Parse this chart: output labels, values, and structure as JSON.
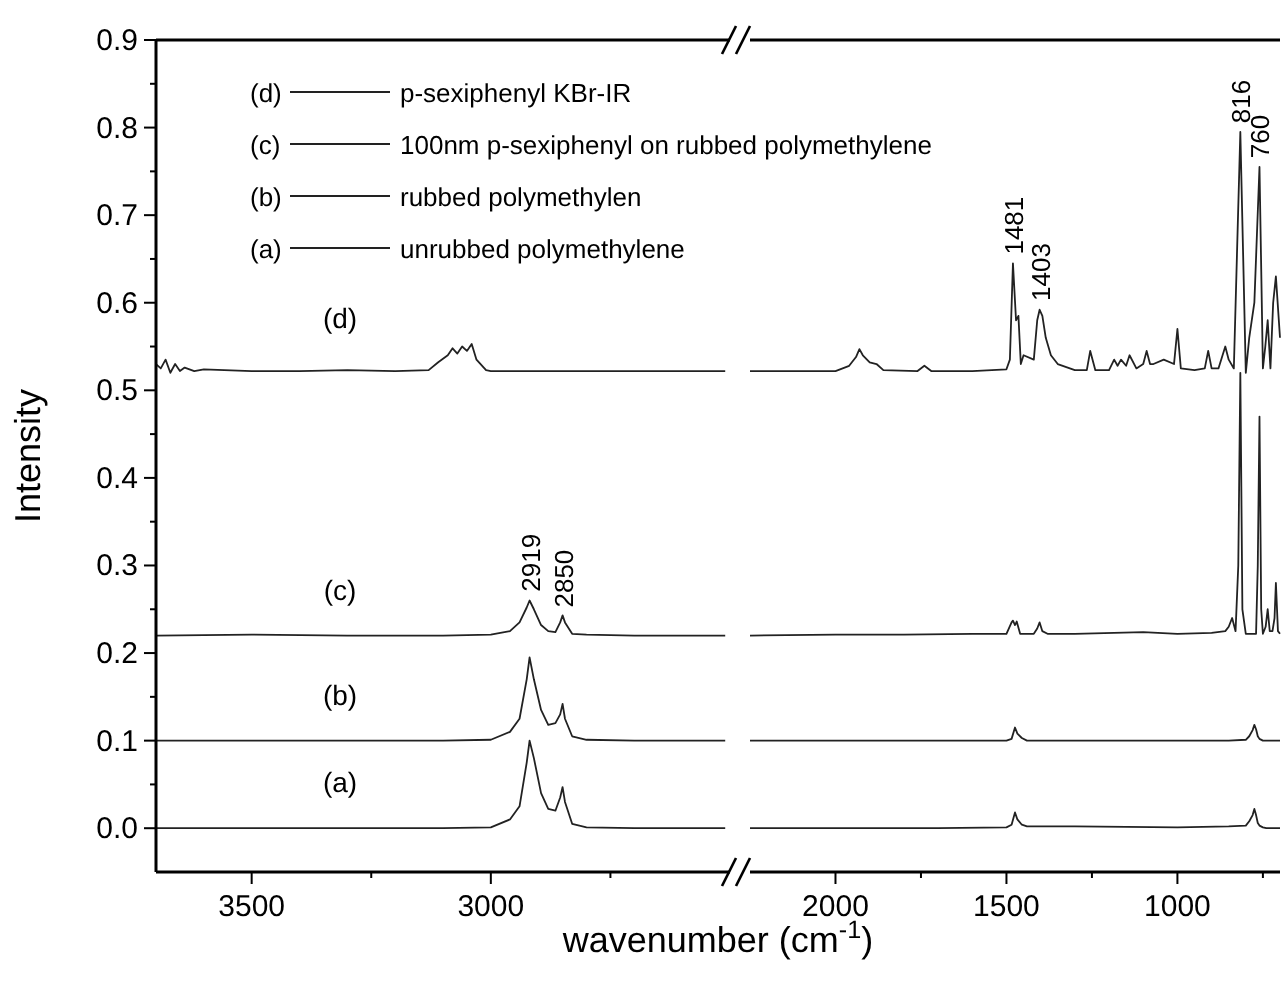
{
  "chart_data": [
    {
      "type": "line",
      "ylabel": "Intensity",
      "xlabel": "wavenumber (cm$^{-1}$)",
      "xlim": [
        3700,
        2500
      ],
      "ylim": [
        -0.05,
        0.9
      ],
      "xticks": [
        3500,
        {
          "value": 3250,
          "label": null
        },
        3000,
        {
          "value": 2750,
          "label": null
        }
      ],
      "yticks": [
        {
          "value": 0,
          "label": "0.0"
        },
        {
          "value": 0.05,
          "label": null
        },
        {
          "value": 0.1,
          "label": "0.1"
        },
        {
          "value": 0.15,
          "label": null
        },
        {
          "value": 0.2,
          "label": "0.2"
        },
        {
          "value": 0.25,
          "label": null
        },
        {
          "value": 0.3,
          "label": "0.3"
        },
        {
          "value": 0.35,
          "label": null
        },
        {
          "value": 0.4,
          "label": "0.4"
        },
        {
          "value": 0.45,
          "label": null
        },
        {
          "value": 0.5,
          "label": "0.5"
        },
        {
          "value": 0.55,
          "label": null
        },
        {
          "value": 0.6,
          "label": "0.6"
        },
        {
          "value": 0.65,
          "label": null
        },
        {
          "value": 0.7,
          "label": "0.7"
        },
        {
          "value": 0.75,
          "label": null
        },
        {
          "value": 0.8,
          "label": "0.8"
        },
        {
          "value": 0.85,
          "label": null
        },
        {
          "value": 0.9,
          "label": "0.9"
        }
      ],
      "legend": "top",
      "grid": false,
      "marker": "none",
      "line_style": "solid",
      "series": [
        {
          "name": "p-sexiphenyl KBr-IR",
          "color": "#222222",
          "x": [
            3700,
            3690,
            3680,
            3670,
            3660,
            3650,
            3640,
            3620,
            3600,
            3500,
            3400,
            3300,
            3200,
            3130,
            3110,
            3090,
            3080,
            3070,
            3060,
            3050,
            3040,
            3030,
            3010,
            3000,
            2900,
            2800,
            2700,
            2600,
            2510
          ],
          "values": [
            0.53,
            0.525,
            0.535,
            0.52,
            0.53,
            0.522,
            0.526,
            0.522,
            0.524,
            0.522,
            0.522,
            0.523,
            0.522,
            0.523,
            0.532,
            0.54,
            0.548,
            0.542,
            0.55,
            0.545,
            0.553,
            0.535,
            0.523,
            0.522,
            0.522,
            0.522,
            0.522,
            0.522,
            0.522
          ]
        },
        {
          "name": "100nm p-sexiphenyl on rubbed polymethylene",
          "color": "#222222",
          "x": [
            3700,
            3500,
            3300,
            3100,
            3000,
            2960,
            2940,
            2925,
            2919,
            2910,
            2895,
            2880,
            2865,
            2855,
            2850,
            2845,
            2830,
            2800,
            2700,
            2600,
            2510
          ],
          "values": [
            0.22,
            0.221,
            0.22,
            0.22,
            0.221,
            0.225,
            0.235,
            0.252,
            0.26,
            0.25,
            0.232,
            0.225,
            0.224,
            0.235,
            0.243,
            0.235,
            0.222,
            0.221,
            0.22,
            0.22,
            0.22
          ]
        },
        {
          "name": "rubbed polymethylen",
          "color": "#222222",
          "x": [
            3700,
            3500,
            3300,
            3100,
            3000,
            2960,
            2940,
            2925,
            2919,
            2910,
            2895,
            2880,
            2865,
            2855,
            2850,
            2845,
            2830,
            2800,
            2700,
            2600,
            2510
          ],
          "values": [
            0.1,
            0.1,
            0.1,
            0.1,
            0.101,
            0.11,
            0.125,
            0.17,
            0.195,
            0.17,
            0.135,
            0.118,
            0.12,
            0.13,
            0.142,
            0.125,
            0.105,
            0.101,
            0.1,
            0.1,
            0.1
          ]
        },
        {
          "name": "unrubbed polymethylene",
          "color": "#222222",
          "x": [
            3700,
            3500,
            3300,
            3100,
            3000,
            2960,
            2940,
            2925,
            2919,
            2910,
            2895,
            2880,
            2865,
            2855,
            2850,
            2845,
            2830,
            2800,
            2700,
            2600,
            2510
          ],
          "values": [
            0,
            0,
            0,
            0,
            0.001,
            0.01,
            0.025,
            0.075,
            0.1,
            0.08,
            0.04,
            0.022,
            0.02,
            0.035,
            0.047,
            0.03,
            0.005,
            0.001,
            0,
            0,
            0
          ]
        }
      ],
      "annotations": [
        "(d)",
        "(c)",
        "(b)",
        "(a)",
        "(d)",
        "(c)",
        "(b)",
        "(a)",
        {
          "text": "2919",
          "x": 2919,
          "y": 0.27
        },
        {
          "text": "2850",
          "x": 2850,
          "y": 0.252
        }
      ]
    },
    {
      "type": "line",
      "xlim": [
        2250,
        700
      ],
      "ylim": [
        -0.05,
        0.9
      ],
      "tick_labels": "x",
      "xticks": [
        2000,
        {
          "value": 1750,
          "label": null
        },
        1500,
        {
          "value": 1250,
          "label": null
        },
        1000,
        {
          "value": 750,
          "label": null
        }
      ],
      "grid": false,
      "marker": "none",
      "line_style": "solid",
      "series": [
        {
          "color": "#222222",
          "x": [
            2250,
            2100,
            2000,
            1960,
            1940,
            1930,
            1920,
            1900,
            1880,
            1860,
            1760,
            1740,
            1720,
            1600,
            1500,
            1490,
            1481,
            1472,
            1465,
            1458,
            1450,
            1420,
            1410,
            1403,
            1395,
            1385,
            1370,
            1350,
            1300,
            1265,
            1255,
            1240,
            1200,
            1185,
            1175,
            1165,
            1150,
            1140,
            1120,
            1100,
            1090,
            1080,
            1070,
            1040,
            1010,
            1000,
            990,
            950,
            920,
            910,
            900,
            880,
            860,
            850,
            835,
            816,
            800,
            790,
            775,
            760,
            750,
            743,
            736,
            728,
            720,
            712,
            700
          ],
          "values": [
            0.522,
            0.522,
            0.522,
            0.528,
            0.538,
            0.547,
            0.54,
            0.532,
            0.53,
            0.523,
            0.522,
            0.528,
            0.522,
            0.522,
            0.524,
            0.535,
            0.645,
            0.58,
            0.585,
            0.53,
            0.54,
            0.535,
            0.58,
            0.592,
            0.585,
            0.56,
            0.54,
            0.53,
            0.523,
            0.523,
            0.545,
            0.523,
            0.523,
            0.535,
            0.528,
            0.535,
            0.528,
            0.54,
            0.525,
            0.53,
            0.545,
            0.53,
            0.53,
            0.535,
            0.53,
            0.57,
            0.525,
            0.523,
            0.525,
            0.545,
            0.525,
            0.525,
            0.55,
            0.535,
            0.525,
            0.795,
            0.52,
            0.56,
            0.6,
            0.755,
            0.525,
            0.55,
            0.58,
            0.525,
            0.6,
            0.63,
            0.56
          ]
        },
        {
          "color": "#222222",
          "x": [
            2250,
            2000,
            1800,
            1600,
            1500,
            1485,
            1481,
            1475,
            1470,
            1460,
            1420,
            1410,
            1403,
            1395,
            1380,
            1300,
            1100,
            1000,
            900,
            860,
            850,
            840,
            830,
            822,
            816,
            810,
            800,
            780,
            770,
            765,
            760,
            755,
            750,
            742,
            736,
            730,
            722,
            716,
            712,
            706,
            700
          ],
          "values": [
            0.22,
            0.221,
            0.221,
            0.222,
            0.222,
            0.235,
            0.237,
            0.232,
            0.236,
            0.222,
            0.222,
            0.228,
            0.235,
            0.225,
            0.222,
            0.222,
            0.224,
            0.222,
            0.223,
            0.225,
            0.23,
            0.24,
            0.225,
            0.3,
            0.52,
            0.25,
            0.222,
            0.222,
            0.222,
            0.3,
            0.47,
            0.25,
            0.222,
            0.23,
            0.25,
            0.225,
            0.225,
            0.24,
            0.28,
            0.225,
            0.222
          ]
        },
        {
          "color": "#222222",
          "x": [
            2250,
            2000,
            1700,
            1500,
            1485,
            1475,
            1468,
            1455,
            1440,
            1300,
            1000,
            850,
            800,
            790,
            780,
            775,
            770,
            765,
            760,
            750,
            740,
            720,
            700
          ],
          "values": [
            0.1,
            0.1,
            0.1,
            0.1,
            0.102,
            0.115,
            0.108,
            0.103,
            0.1,
            0.1,
            0.1,
            0.1,
            0.101,
            0.105,
            0.112,
            0.118,
            0.113,
            0.105,
            0.102,
            0.1,
            0.1,
            0.1,
            0.1
          ]
        },
        {
          "color": "#222222",
          "x": [
            2250,
            2000,
            1700,
            1500,
            1485,
            1475,
            1468,
            1455,
            1440,
            1300,
            1000,
            850,
            800,
            790,
            780,
            775,
            770,
            765,
            760,
            750,
            740,
            720,
            700
          ],
          "values": [
            0,
            0,
            0,
            0.001,
            0.004,
            0.018,
            0.01,
            0.004,
            0.002,
            0.002,
            0.001,
            0.002,
            0.003,
            0.008,
            0.015,
            0.022,
            0.015,
            0.006,
            0.003,
            0.001,
            0,
            0,
            0
          ]
        }
      ],
      "annotations": [
        {
          "text": "1481",
          "x": 1481,
          "y": 0.655
        },
        {
          "text": "1403",
          "x": 1403,
          "y": 0.602
        },
        {
          "text": "816",
          "x": 816,
          "y": 0.805
        },
        {
          "text": "760",
          "x": 760,
          "y": 0.765
        }
      ]
    }
  ]
}
